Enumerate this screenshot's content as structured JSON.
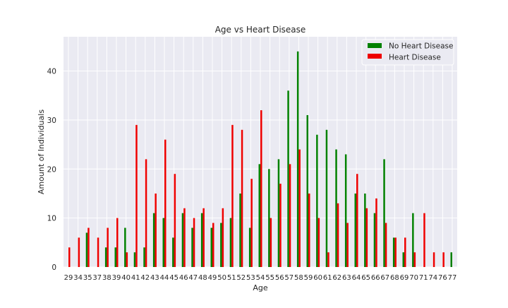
{
  "chart_data": {
    "type": "bar",
    "title": "Age vs Heart Disease",
    "xlabel": "Age",
    "ylabel": "Amount of Individuals",
    "ylim": [
      0,
      47
    ],
    "yticks": [
      0,
      10,
      20,
      30,
      40
    ],
    "grid": true,
    "legend_position": "top-right",
    "categories": [
      "29",
      "34",
      "35",
      "37",
      "38",
      "39",
      "40",
      "41",
      "42",
      "43",
      "44",
      "45",
      "46",
      "47",
      "48",
      "49",
      "50",
      "51",
      "52",
      "53",
      "54",
      "55",
      "56",
      "57",
      "58",
      "59",
      "60",
      "61",
      "62",
      "63",
      "64",
      "65",
      "66",
      "67",
      "68",
      "69",
      "70",
      "71",
      "74",
      "76",
      "77"
    ],
    "series": [
      {
        "name": "No Heart Disease",
        "color": "#008000",
        "values": [
          0,
          0,
          7,
          0,
          4,
          4,
          8,
          3,
          4,
          11,
          10,
          6,
          11,
          8,
          11,
          8,
          9,
          10,
          15,
          8,
          21,
          20,
          22,
          36,
          44,
          31,
          27,
          28,
          24,
          23,
          15,
          15,
          11,
          22,
          6,
          3,
          11,
          0,
          0,
          0,
          3
        ]
      },
      {
        "name": "Heart Disease",
        "color": "#ee0000",
        "values": [
          4,
          6,
          8,
          6,
          8,
          10,
          3,
          29,
          22,
          15,
          26,
          19,
          12,
          10,
          12,
          9,
          12,
          29,
          28,
          18,
          32,
          10,
          17,
          21,
          24,
          15,
          10,
          3,
          13,
          9,
          19,
          12,
          14,
          9,
          6,
          6,
          3,
          11,
          3,
          3,
          0
        ]
      }
    ]
  }
}
